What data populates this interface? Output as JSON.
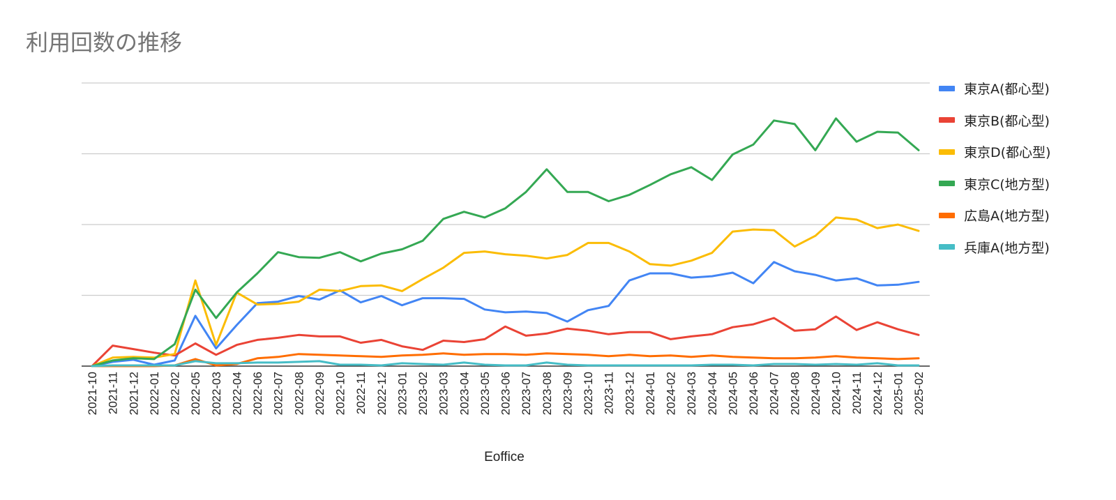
{
  "chart_data": {
    "type": "line",
    "title": "利用回数の推移",
    "xlabel": "Eoffice",
    "ylabel": "",
    "ylim": [
      0,
      4
    ],
    "grid": true,
    "legend_position": "right",
    "categories": [
      "2021-10",
      "2021-11",
      "2021-12",
      "2022-01",
      "2022-02",
      "2022-05",
      "2022-03",
      "2022-04",
      "2022-06",
      "2022-07",
      "2022-08",
      "2022-09",
      "2022-10",
      "2022-11",
      "2022-12",
      "2023-01",
      "2023-02",
      "2023-03",
      "2023-04",
      "2023-05",
      "2023-06",
      "2023-07",
      "2023-08",
      "2023-09",
      "2023-10",
      "2023-11",
      "2023-12",
      "2024-01",
      "2024-02",
      "2024-03",
      "2024-04",
      "2024-05",
      "2024-06",
      "2024-07",
      "2024-08",
      "2024-09",
      "2024-10",
      "2024-11",
      "2024-12",
      "2025-01",
      "2025-02"
    ],
    "series": [
      {
        "name": "東京A(都心型)",
        "color": "#4285f4",
        "values": [
          0,
          0.06,
          0.09,
          0.02,
          0.08,
          0.71,
          0.25,
          0.58,
          0.89,
          0.91,
          0.99,
          0.94,
          1.07,
          0.9,
          0.99,
          0.86,
          0.96,
          0.96,
          0.95,
          0.8,
          0.76,
          0.77,
          0.75,
          0.63,
          0.79,
          0.85,
          1.21,
          1.31,
          1.31,
          1.25,
          1.27,
          1.32,
          1.17,
          1.47,
          1.34,
          1.29,
          1.21,
          1.24,
          1.14,
          1.15,
          1.19
        ]
      },
      {
        "name": "東京B(都心型)",
        "color": "#ea4335",
        "values": [
          0,
          0.29,
          0.24,
          0.19,
          0.15,
          0.32,
          0.16,
          0.3,
          0.37,
          0.4,
          0.44,
          0.42,
          0.42,
          0.33,
          0.37,
          0.28,
          0.23,
          0.36,
          0.34,
          0.38,
          0.56,
          0.43,
          0.46,
          0.53,
          0.5,
          0.45,
          0.48,
          0.48,
          0.38,
          0.42,
          0.45,
          0.55,
          0.59,
          0.68,
          0.5,
          0.52,
          0.7,
          0.51,
          0.62,
          0.52,
          0.44
        ]
      },
      {
        "name": "東京D(都心型)",
        "color": "#fbbc04",
        "values": [
          0,
          0.12,
          0.13,
          0.12,
          0.17,
          1.21,
          0.3,
          1.04,
          0.87,
          0.88,
          0.91,
          1.08,
          1.06,
          1.13,
          1.14,
          1.06,
          1.23,
          1.39,
          1.6,
          1.62,
          1.58,
          1.56,
          1.52,
          1.57,
          1.74,
          1.74,
          1.62,
          1.44,
          1.42,
          1.49,
          1.6,
          1.9,
          1.93,
          1.92,
          1.69,
          1.84,
          2.1,
          2.07,
          1.95,
          2.0,
          1.91
        ]
      },
      {
        "name": "東京C(地方型)",
        "color": "#34a853",
        "values": [
          0,
          0.08,
          0.11,
          0.1,
          0.31,
          1.08,
          0.68,
          1.04,
          1.31,
          1.61,
          1.54,
          1.53,
          1.61,
          1.48,
          1.59,
          1.65,
          1.77,
          2.08,
          2.18,
          2.1,
          2.23,
          2.46,
          2.78,
          2.46,
          2.46,
          2.33,
          2.42,
          2.56,
          2.71,
          2.81,
          2.63,
          2.99,
          3.13,
          3.47,
          3.42,
          3.05,
          3.5,
          3.17,
          3.31,
          3.3,
          3.05
        ]
      },
      {
        "name": "広島A(地方型)",
        "color": "#ff6d01",
        "values": [
          0,
          0,
          0,
          0,
          0.01,
          0.1,
          0.01,
          0.03,
          0.11,
          0.13,
          0.17,
          0.16,
          0.15,
          0.14,
          0.13,
          0.15,
          0.16,
          0.18,
          0.16,
          0.17,
          0.17,
          0.16,
          0.18,
          0.17,
          0.16,
          0.14,
          0.16,
          0.14,
          0.15,
          0.13,
          0.15,
          0.13,
          0.12,
          0.11,
          0.11,
          0.12,
          0.14,
          0.12,
          0.11,
          0.1,
          0.11
        ]
      },
      {
        "name": "兵庫A(地方型)",
        "color": "#46bdc6",
        "values": [
          0,
          0.01,
          0.01,
          0.01,
          0.01,
          0.07,
          0.04,
          0.04,
          0.05,
          0.05,
          0.06,
          0.07,
          0.02,
          0.02,
          0.01,
          0.04,
          0.03,
          0.02,
          0.05,
          0.02,
          0.01,
          0.01,
          0.05,
          0.02,
          0.01,
          0.01,
          0.01,
          0.01,
          0.01,
          0.01,
          0.02,
          0.02,
          0.01,
          0.03,
          0.03,
          0.02,
          0.03,
          0.02,
          0.04,
          0.01,
          0.01
        ]
      }
    ]
  },
  "colors": {
    "gridline": "#cccccc",
    "axis": "#333333",
    "text": "#222222"
  }
}
